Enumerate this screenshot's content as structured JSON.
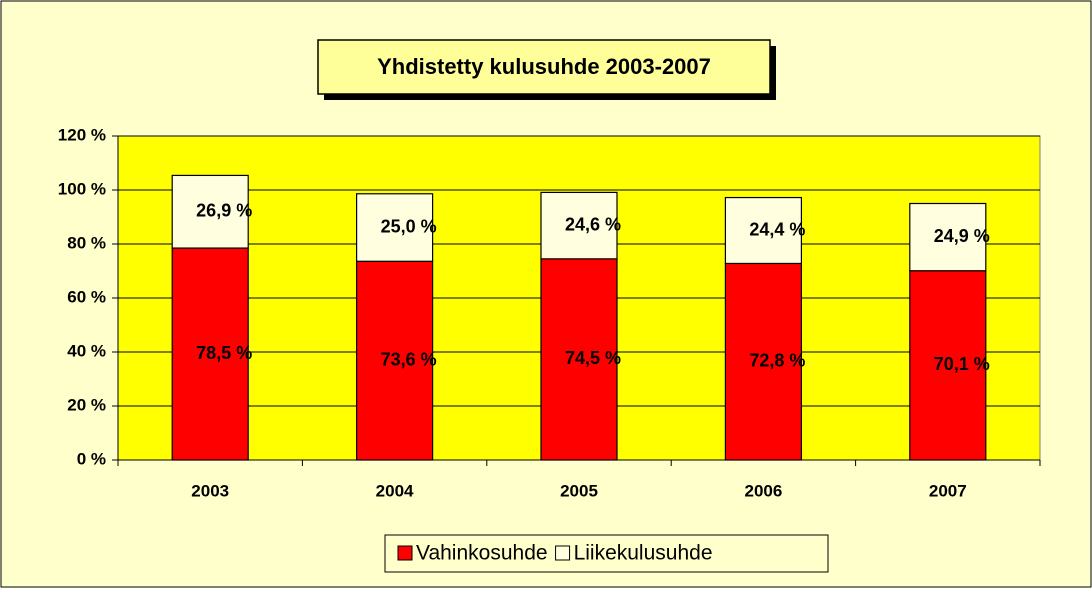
{
  "chart_data": {
    "type": "stacked_bar",
    "title": "Yhdistetty kulusuhde 2003-2007",
    "categories": [
      "2003",
      "2004",
      "2005",
      "2006",
      "2007"
    ],
    "series": [
      {
        "name": "Vahinkosuhde",
        "color": "#ff0000",
        "values": [
          78.5,
          73.6,
          74.5,
          72.8,
          70.1
        ],
        "value_labels": [
          "78,5 %",
          "73,6 %",
          "74,5 %",
          "72,8 %",
          "70,1 %"
        ]
      },
      {
        "name": "Liikekulusuhde",
        "color": "#ffffe0",
        "values": [
          26.9,
          25.0,
          24.6,
          24.4,
          24.9
        ],
        "value_labels": [
          "26,9 %",
          "25,0 %",
          "24,6 %",
          "24,4 %",
          "24,9 %"
        ]
      }
    ],
    "ylim": [
      0,
      120
    ],
    "yticks": [
      {
        "value": 0,
        "label": "0 %"
      },
      {
        "value": 20,
        "label": "20 %"
      },
      {
        "value": 40,
        "label": "40 %"
      },
      {
        "value": 60,
        "label": "60 %"
      },
      {
        "value": 80,
        "label": "80 %"
      },
      {
        "value": 100,
        "label": "100 %"
      },
      {
        "value": 120,
        "label": "120 %"
      }
    ],
    "grid": true,
    "legend": "bottom",
    "plot_color": "#ffff00"
  }
}
